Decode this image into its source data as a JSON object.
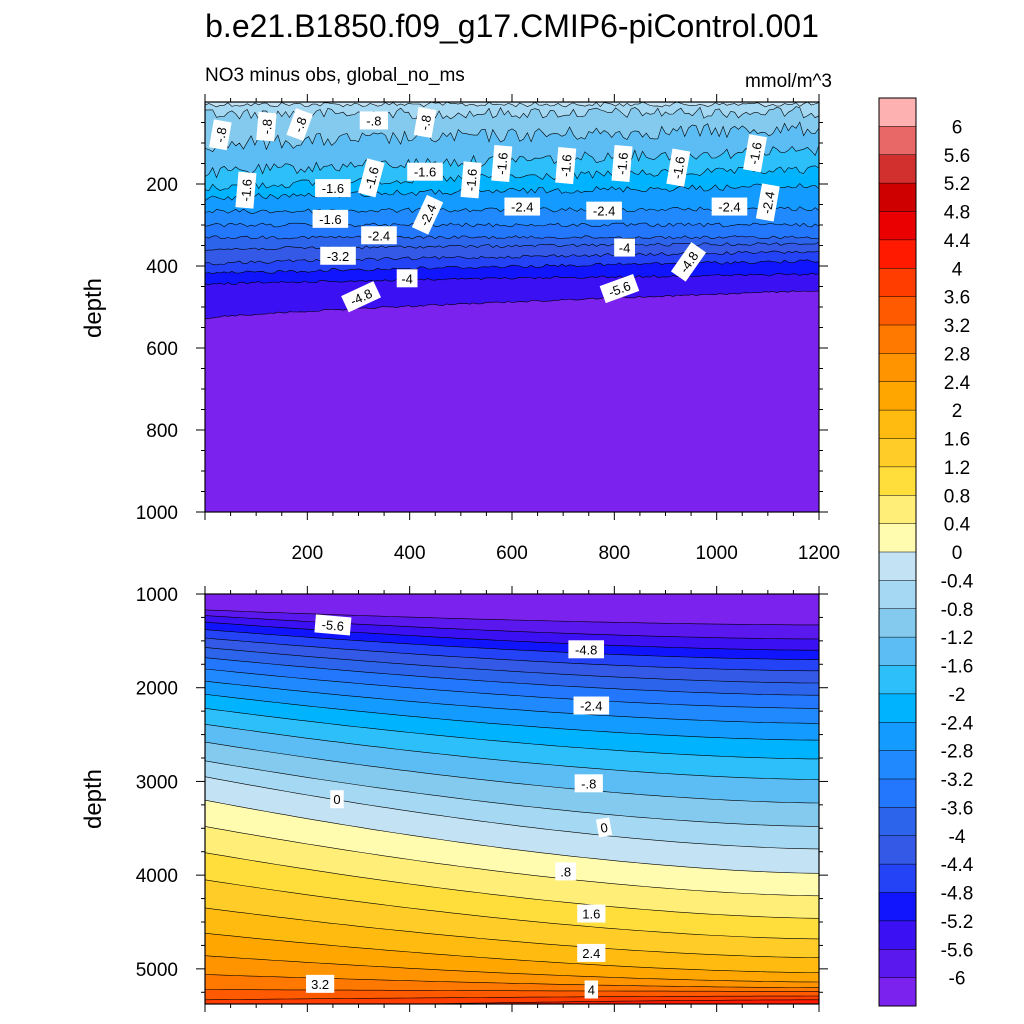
{
  "chart_data": {
    "type": "contour",
    "title": "b.e21.B1850.f09_g17.CMIP6-piControl.001",
    "left_string": "NO3 minus obs, global_no_ms",
    "right_string": "mmol/m^3",
    "ylabel": "depth",
    "colorbar": {
      "levels": [
        "6",
        "5.6",
        "5.2",
        "4.8",
        "4.4",
        "4",
        "3.6",
        "3.2",
        "2.8",
        "2.4",
        "2",
        "1.6",
        "1.2",
        "0.8",
        "0.4",
        "0",
        "-0.4",
        "-0.8",
        "-1.2",
        "-1.6",
        "-2",
        "-2.4",
        "-2.8",
        "-3.2",
        "-3.6",
        "-4",
        "-4.4",
        "-4.8",
        "-5.2",
        "-5.6",
        "-6"
      ],
      "colors": [
        "#fdb1b1",
        "#e86868",
        "#d2302f",
        "#cf0000",
        "#ea0000",
        "#ff1a00",
        "#ff3d00",
        "#ff5a00",
        "#ff7800",
        "#ff9300",
        "#ffa600",
        "#ffbb10",
        "#ffcc28",
        "#ffde3c",
        "#ffef78",
        "#fffbaf",
        "#c3e3f5",
        "#a5d8f2",
        "#84caef",
        "#5bbdf3",
        "#2dbff9",
        "#00b3ff",
        "#139bff",
        "#2189fe",
        "#2377fd",
        "#2c64eb",
        "#3359e6",
        "#2442f6",
        "#1115fe",
        "#3b10f2",
        "#5a17ee",
        "#7c22ef"
      ]
    },
    "panels": [
      {
        "name": "upper-ocean",
        "x_ticks": [
          200,
          400,
          600,
          800,
          1000,
          1200
        ],
        "xlim": [
          0,
          1200
        ],
        "y_ticks": [
          200,
          400,
          600,
          800,
          1000
        ],
        "ylim": [
          0,
          1000
        ],
        "contour_labels": [
          "-.8",
          "-.8",
          "-.8",
          "-.8",
          "-.8",
          "-1.6",
          "-1.6",
          "-1.6",
          "-1.6",
          "-1.6",
          "-1.6",
          "-1.6",
          "-1.6",
          "-1.6",
          "-1.6",
          "-1.6",
          "-2.4",
          "-2.4",
          "-2.4",
          "-2.4",
          "-2.4",
          "-2.4",
          "-3.2",
          "-4",
          "-4",
          "-4.8",
          "-4.8",
          "-5.6",
          "-5.6"
        ]
      },
      {
        "name": "deep-ocean",
        "x_ticks": [
          200,
          400,
          600,
          800,
          1000,
          1200
        ],
        "xlim": [
          0,
          1200
        ],
        "y_ticks": [
          1000,
          2000,
          3000,
          4000,
          5000
        ],
        "ylim": [
          1000,
          5375
        ],
        "contour_labels": [
          "-5.6",
          "-4.8",
          "-2.4",
          "-.8",
          "0",
          "0",
          ".8",
          "1.6",
          "2.4",
          "3.2",
          "4"
        ]
      }
    ]
  }
}
